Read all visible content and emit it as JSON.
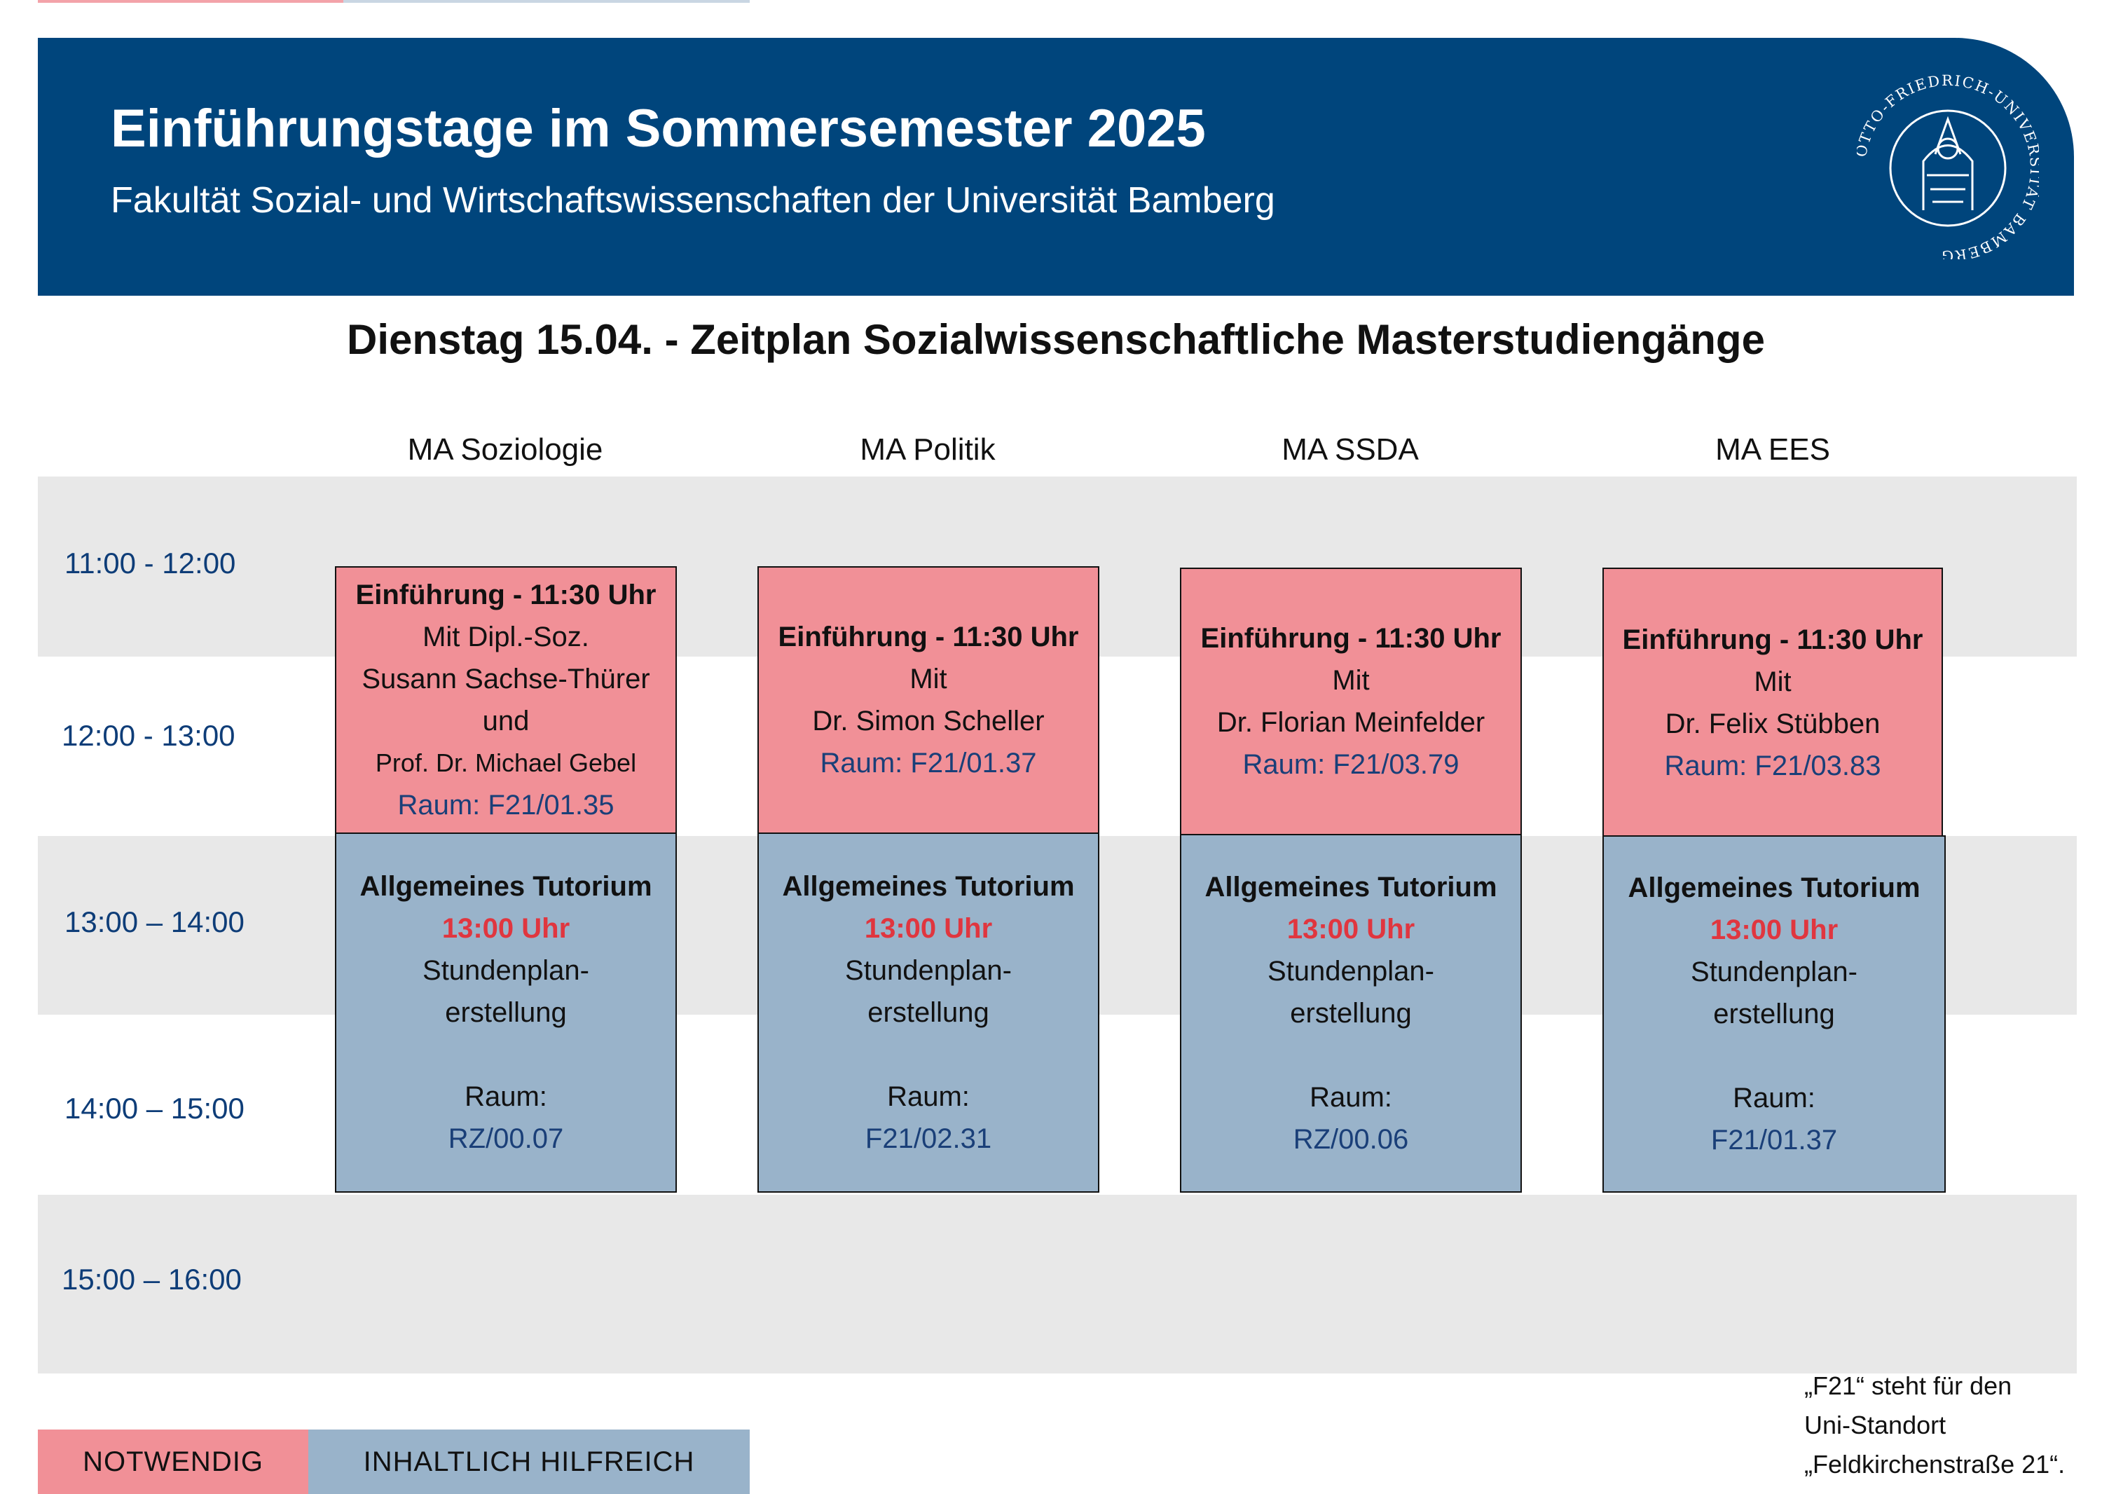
{
  "header": {
    "title": "Einführungstage im Sommersemester 2025",
    "subtitle": "Fakultät Sozial- und Wirtschaftswissenschaften der Universität Bamberg",
    "seal_text": "OTTO-FRIEDRICH-UNIVERSITÄT BAMBERG",
    "colors": {
      "banner": "#00457c",
      "required": "#f19097",
      "helpful": "#99b3ca"
    }
  },
  "heading": "Dienstag 15.04. - Zeitplan Sozialwissenschaftliche Masterstudiengänge",
  "columns": [
    "MA  Soziologie",
    "MA Politik",
    "MA SSDA",
    "MA EES"
  ],
  "times": [
    "11:00 - 12:00",
    "12:00 - 13:00",
    "13:00 – 14:00",
    "14:00 – 15:00",
    "15:00 – 16:00"
  ],
  "intro_sessions": [
    {
      "title": "Einführung - 11:30 Uhr",
      "lines": [
        "Mit Dipl.-Soz.",
        "Susann Sachse-Thürer",
        "und",
        "Prof. Dr. Michael Gebel"
      ],
      "room": "Raum: F21/01.35"
    },
    {
      "title": "Einführung - 11:30 Uhr",
      "lines": [
        "Mit",
        "Dr. Simon Scheller"
      ],
      "room": "Raum: F21/01.37"
    },
    {
      "title": "Einführung - 11:30 Uhr",
      "lines": [
        "Mit",
        "Dr. Florian Meinfelder"
      ],
      "room": "Raum: F21/03.79"
    },
    {
      "title": "Einführung - 11:30 Uhr",
      "lines": [
        "Mit",
        "Dr. Felix Stübben"
      ],
      "room": "Raum: F21/03.83"
    }
  ],
  "tutorials": [
    {
      "title": "Allgemeines Tutorium",
      "time": "13:00 Uhr",
      "line1": "Stundenplan-",
      "line2": "erstellung",
      "room_label": "Raum:",
      "room": "RZ/00.07"
    },
    {
      "title": "Allgemeines Tutorium",
      "time": "13:00 Uhr",
      "line1": "Stundenplan-",
      "line2": "erstellung",
      "room_label": "Raum:",
      "room": "F21/02.31"
    },
    {
      "title": "Allgemeines Tutorium",
      "time": "13:00 Uhr",
      "line1": "Stundenplan-",
      "line2": "erstellung",
      "room_label": "Raum:",
      "room": "RZ/00.06"
    },
    {
      "title": "Allgemeines Tutorium",
      "time": "13:00 Uhr",
      "line1": "Stundenplan-",
      "line2": "erstellung",
      "room_label": "Raum:",
      "room": "F21/01.37"
    }
  ],
  "legend": {
    "required": "NOTWENDIG",
    "helpful": "INHALTLICH HILFREICH"
  },
  "footnote": [
    "„F21“ steht für den",
    "Uni-Standort",
    "„Feldkirchenstraße 21“."
  ]
}
